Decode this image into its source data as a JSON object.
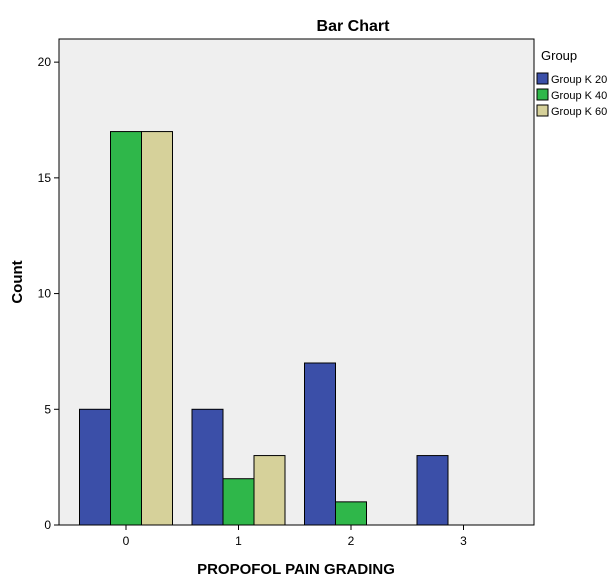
{
  "chart_data": {
    "type": "bar",
    "title": "Bar Chart",
    "xlabel": "PROPOFOL PAIN GRADING",
    "ylabel": "Count",
    "categories": [
      "0",
      "1",
      "2",
      "3"
    ],
    "series": [
      {
        "name": "Group K 20",
        "color": "#3b4fa8",
        "values": [
          5,
          5,
          7,
          3
        ]
      },
      {
        "name": "Group K 40",
        "color": "#2fb74a",
        "values": [
          17,
          2,
          1,
          0
        ]
      },
      {
        "name": "Group K 60",
        "color": "#d6d19a",
        "values": [
          17,
          3,
          0,
          0
        ]
      }
    ],
    "ylim": [
      0,
      21
    ],
    "yticks": [
      0,
      5,
      10,
      15,
      20
    ],
    "legend_title": "Group",
    "legend_position": "right",
    "grid": false,
    "plot_background": "#efefef"
  }
}
